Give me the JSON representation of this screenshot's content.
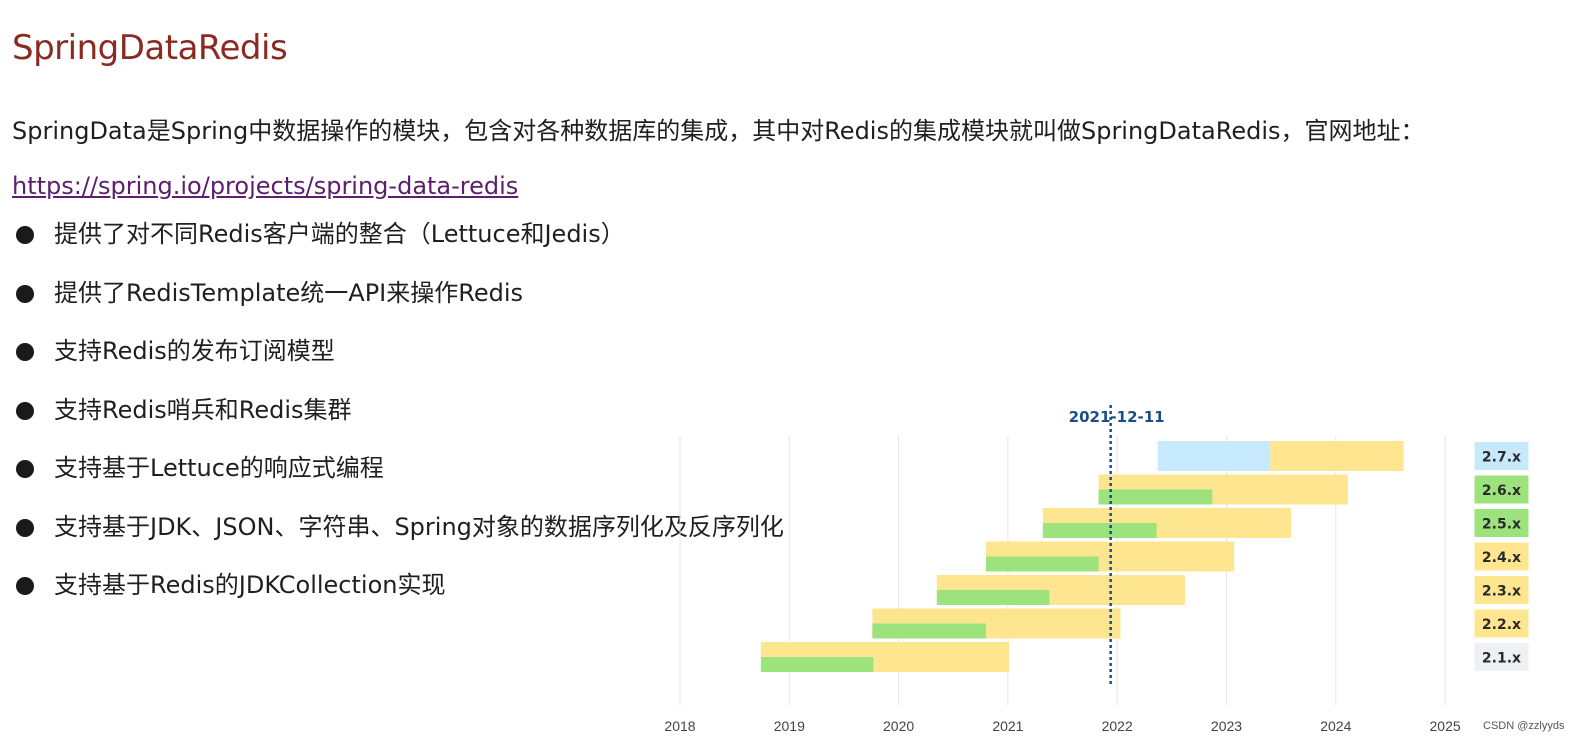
{
  "title": "SpringDataRedis",
  "intro": {
    "text": "SpringData是Spring中数据操作的模块，包含对各种数据库的集成，其中对Redis的集成模块就叫做SpringDataRedis，官网地址：",
    "link": "https://spring.io/projects/spring-data-redis"
  },
  "bullets": [
    "提供了对不同Redis客户端的整合（Lettuce和Jedis）",
    "提供了RedisTemplate统一API来操作Redis",
    "支持Redis的发布订阅模型",
    "支持Redis哨兵和Redis集群",
    "支持基于Lettuce的响应式编程",
    "支持基于JDK、JSON、字符串、Spring对象的数据序列化及反序列化",
    "支持基于Redis的JDKCollection实现"
  ],
  "watermark": "CSDN @zzlyyds",
  "colors": {
    "oss_support": "#9ce37d",
    "commercial_support": "#fde68f",
    "future": "#c6e9fb",
    "marker": "#1a4e86",
    "title": "#8b2a22",
    "link": "#5b1f6e"
  },
  "chart_data": {
    "type": "timeline",
    "x_ticks": [
      "2018",
      "2019",
      "2020",
      "2021",
      "2022",
      "2023",
      "2024",
      "2025"
    ],
    "xlim": [
      2018.0,
      2025.0
    ],
    "grid": true,
    "marker": {
      "label": "2021-12-11",
      "x": 2021.94
    },
    "versions": [
      {
        "name": "2.7.x",
        "label_style": "future",
        "oss": null,
        "future": [
          2022.37,
          2023.4
        ],
        "commercial": [
          2023.4,
          2024.62
        ]
      },
      {
        "name": "2.6.x",
        "label_style": "oss",
        "oss": [
          2021.83,
          2022.87
        ],
        "commercial": [
          2021.83,
          2024.11
        ]
      },
      {
        "name": "2.5.x",
        "label_style": "oss",
        "oss": [
          2021.32,
          2022.36
        ],
        "commercial": [
          2021.32,
          2023.59
        ]
      },
      {
        "name": "2.4.x",
        "label_style": "commercial",
        "oss": [
          2020.8,
          2021.83
        ],
        "commercial": [
          2020.8,
          2023.07
        ]
      },
      {
        "name": "2.3.x",
        "label_style": "commercial",
        "oss": [
          2020.35,
          2021.38
        ],
        "commercial": [
          2020.35,
          2022.62
        ]
      },
      {
        "name": "2.2.x",
        "label_style": "commercial",
        "oss": [
          2019.76,
          2020.8
        ],
        "commercial": [
          2019.76,
          2022.03
        ]
      },
      {
        "name": "2.1.x",
        "label_style": "eol",
        "oss": [
          2018.74,
          2019.77
        ],
        "commercial": [
          2018.74,
          2021.01
        ]
      }
    ]
  }
}
